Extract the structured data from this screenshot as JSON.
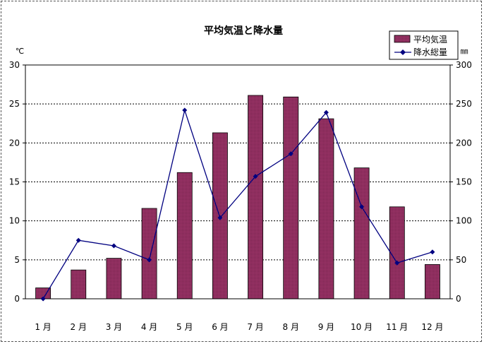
{
  "chart_data": {
    "type": "bar",
    "title": "平均気温と降水量",
    "y_left_unit": "℃",
    "y_right_unit": "㎜",
    "categories": [
      "1 月",
      "2 月",
      "3 月",
      "4 月",
      "5 月",
      "6 月",
      "7 月",
      "8 月",
      "9 月",
      "10 月",
      "11 月",
      "12 月"
    ],
    "ylim_left": [
      0,
      30
    ],
    "ylim_right": [
      0,
      300
    ],
    "yticks_left": [
      "0",
      "5",
      "10",
      "15",
      "20",
      "25",
      "30"
    ],
    "yticks_right": [
      "0",
      "50",
      "100",
      "150",
      "200",
      "250",
      "300"
    ],
    "grid": true,
    "legend_position": "top-right",
    "series": [
      {
        "name": "平均気温",
        "type": "bar",
        "axis": "left",
        "color": "#993366",
        "values": [
          1.4,
          3.7,
          5.2,
          11.6,
          16.2,
          21.3,
          26.1,
          25.9,
          23.1,
          16.8,
          11.8,
          4.4
        ]
      },
      {
        "name": "降水総量",
        "type": "line",
        "axis": "right",
        "color": "#000080",
        "values": [
          0,
          75,
          68,
          50,
          242,
          104,
          157,
          186,
          239,
          118,
          46,
          60
        ]
      }
    ]
  }
}
